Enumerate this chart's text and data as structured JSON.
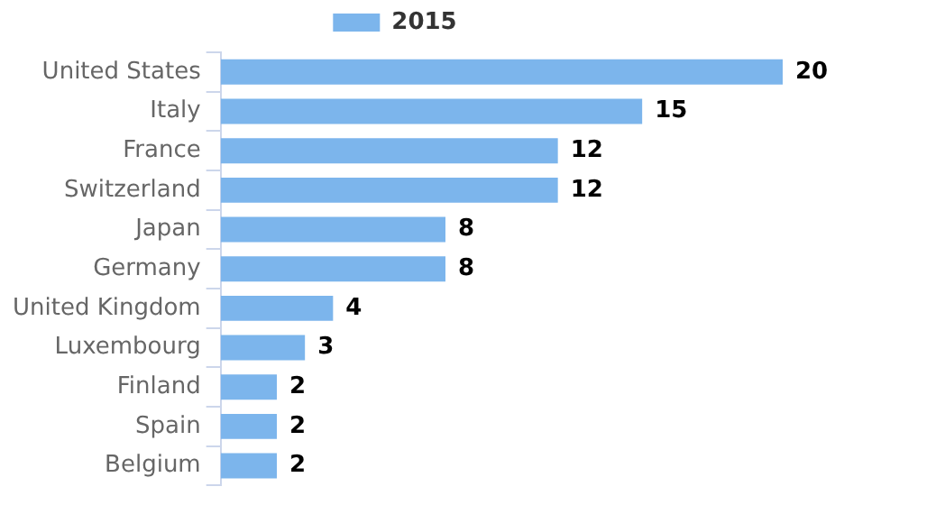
{
  "chart_data": {
    "type": "bar",
    "orientation": "horizontal",
    "categories": [
      "United States",
      "Italy",
      "France",
      "Switzerland",
      "Japan",
      "Germany",
      "United Kingdom",
      "Luxembourg",
      "Finland",
      "Spain",
      "Belgium"
    ],
    "series": [
      {
        "name": "2015",
        "color": "#7cb5ec",
        "values": [
          20,
          15,
          12,
          12,
          8,
          8,
          4,
          3,
          2,
          2,
          2
        ]
      }
    ],
    "data_labels": true,
    "legend": "top"
  }
}
